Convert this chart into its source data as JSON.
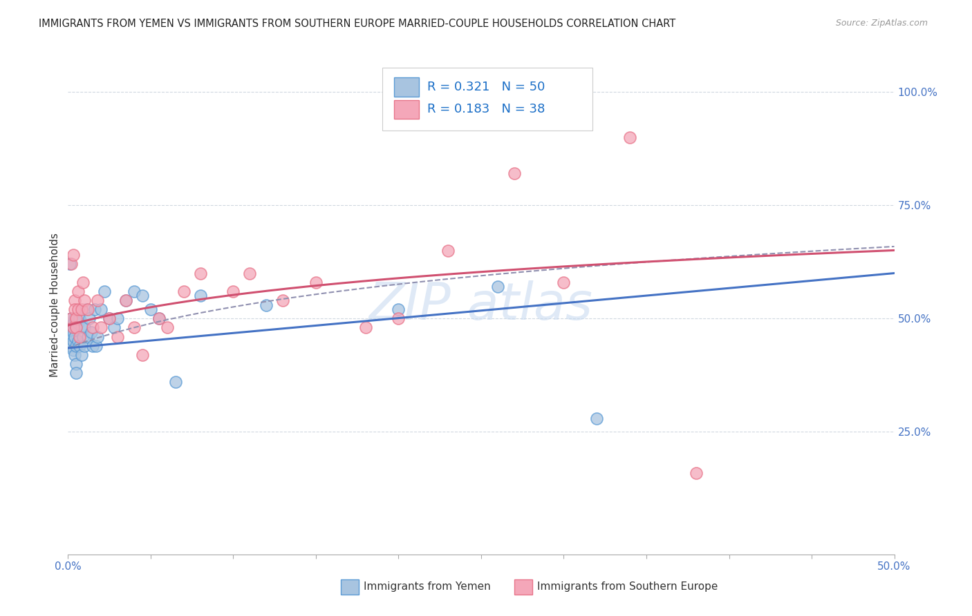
{
  "title": "IMMIGRANTS FROM YEMEN VS IMMIGRANTS FROM SOUTHERN EUROPE MARRIED-COUPLE HOUSEHOLDS CORRELATION CHART",
  "source": "Source: ZipAtlas.com",
  "ylabel": "Married-couple Households",
  "yticks": [
    0.0,
    0.25,
    0.5,
    0.75,
    1.0
  ],
  "ytick_labels": [
    "",
    "25.0%",
    "50.0%",
    "75.0%",
    "100.0%"
  ],
  "xlim": [
    0.0,
    0.5
  ],
  "ylim": [
    -0.02,
    1.08
  ],
  "yemen_R": 0.321,
  "yemen_N": 50,
  "europe_R": 0.183,
  "europe_N": 38,
  "yemen_color": "#a8c4e0",
  "europe_color": "#f4a7b9",
  "yemen_edge_color": "#5b9bd5",
  "europe_edge_color": "#e8748a",
  "yemen_line_color": "#4472c4",
  "europe_line_color": "#d05070",
  "dashed_line_color": "#9090b0",
  "watermark_color": "#c5d8f0",
  "background_color": "#ffffff",
  "legend_color": "#1a6ec7",
  "grid_color": "#d0d8e0",
  "yemen_scatter_x": [
    0.001,
    0.001,
    0.001,
    0.002,
    0.002,
    0.002,
    0.003,
    0.003,
    0.003,
    0.003,
    0.004,
    0.004,
    0.004,
    0.005,
    0.005,
    0.005,
    0.005,
    0.006,
    0.006,
    0.007,
    0.007,
    0.008,
    0.008,
    0.009,
    0.01,
    0.01,
    0.011,
    0.012,
    0.013,
    0.014,
    0.015,
    0.016,
    0.017,
    0.018,
    0.02,
    0.022,
    0.025,
    0.028,
    0.03,
    0.035,
    0.04,
    0.045,
    0.05,
    0.055,
    0.065,
    0.08,
    0.12,
    0.2,
    0.26,
    0.32
  ],
  "yemen_scatter_y": [
    0.62,
    0.48,
    0.45,
    0.5,
    0.46,
    0.44,
    0.49,
    0.47,
    0.45,
    0.43,
    0.5,
    0.46,
    0.42,
    0.48,
    0.44,
    0.4,
    0.38,
    0.49,
    0.45,
    0.5,
    0.44,
    0.48,
    0.42,
    0.46,
    0.48,
    0.44,
    0.52,
    0.46,
    0.5,
    0.47,
    0.44,
    0.52,
    0.44,
    0.46,
    0.52,
    0.56,
    0.5,
    0.48,
    0.5,
    0.54,
    0.56,
    0.55,
    0.52,
    0.5,
    0.36,
    0.55,
    0.53,
    0.52,
    0.57,
    0.28
  ],
  "europe_scatter_x": [
    0.002,
    0.002,
    0.003,
    0.003,
    0.004,
    0.004,
    0.005,
    0.005,
    0.006,
    0.006,
    0.007,
    0.008,
    0.009,
    0.01,
    0.012,
    0.015,
    0.018,
    0.02,
    0.025,
    0.03,
    0.035,
    0.04,
    0.045,
    0.055,
    0.06,
    0.07,
    0.08,
    0.1,
    0.11,
    0.13,
    0.15,
    0.18,
    0.2,
    0.23,
    0.27,
    0.3,
    0.34,
    0.38
  ],
  "europe_scatter_y": [
    0.5,
    0.62,
    0.48,
    0.64,
    0.54,
    0.52,
    0.5,
    0.48,
    0.56,
    0.52,
    0.46,
    0.52,
    0.58,
    0.54,
    0.52,
    0.48,
    0.54,
    0.48,
    0.5,
    0.46,
    0.54,
    0.48,
    0.42,
    0.5,
    0.48,
    0.56,
    0.6,
    0.56,
    0.6,
    0.54,
    0.58,
    0.48,
    0.5,
    0.65,
    0.82,
    0.58,
    0.9,
    0.16
  ],
  "xtick_positions": [
    0.0,
    0.05,
    0.1,
    0.15,
    0.2,
    0.25,
    0.3,
    0.35,
    0.4,
    0.45,
    0.5
  ]
}
